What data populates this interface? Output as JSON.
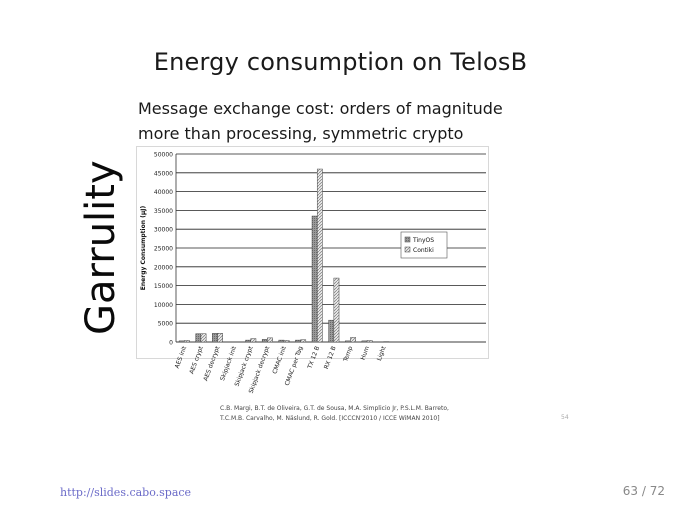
{
  "slide": {
    "title": "Energy consumption on TelosB",
    "side_label": "Garrulity",
    "subtitle_lines": [
      "Message exchange cost: orders of magnitude",
      "more than processing, symmetric crypto"
    ],
    "citation_lines": [
      "C.B. Margi, B.T. de Oliveira, G.T. de Sousa, M.A. Simplicio Jr, P.S.L.M. Barreto,",
      "T.C.M.B. Carvalho, M. Näslund, R. Gold. [ICCCN'2010 / ICCE WiMAN 2010]"
    ],
    "inner_slide_number": "54"
  },
  "footer": {
    "url": "http://slides.cabo.space",
    "page": "63 / 72"
  },
  "chart_data": {
    "type": "bar",
    "title": "",
    "xlabel": "",
    "ylabel": "Energy Consumption (µJ)",
    "ylim": [
      0,
      50000
    ],
    "yticks": [
      0,
      5000,
      10000,
      15000,
      20000,
      25000,
      30000,
      35000,
      40000,
      45000,
      50000
    ],
    "categories": [
      "AES init",
      "AES crypt",
      "AES decrypt",
      "Skipjack init",
      "Skipjack crypt",
      "Skipjack decrypt",
      "CMAC init",
      "CMAC per Tag",
      "TX 12 B",
      "RX 12 B",
      "Temp",
      "Hum",
      "Light"
    ],
    "series": [
      {
        "name": "TinyOS",
        "color": "#8c8c8c",
        "values": [
          300,
          2200,
          2300,
          0,
          500,
          700,
          500,
          500,
          33500,
          5800,
          300,
          300,
          0
        ]
      },
      {
        "name": "Contiki",
        "color": "#e2e2e2",
        "values": [
          400,
          2200,
          2300,
          0,
          900,
          1100,
          400,
          600,
          46000,
          17000,
          1200,
          400,
          100
        ]
      }
    ],
    "grid": true,
    "legend": "right"
  }
}
